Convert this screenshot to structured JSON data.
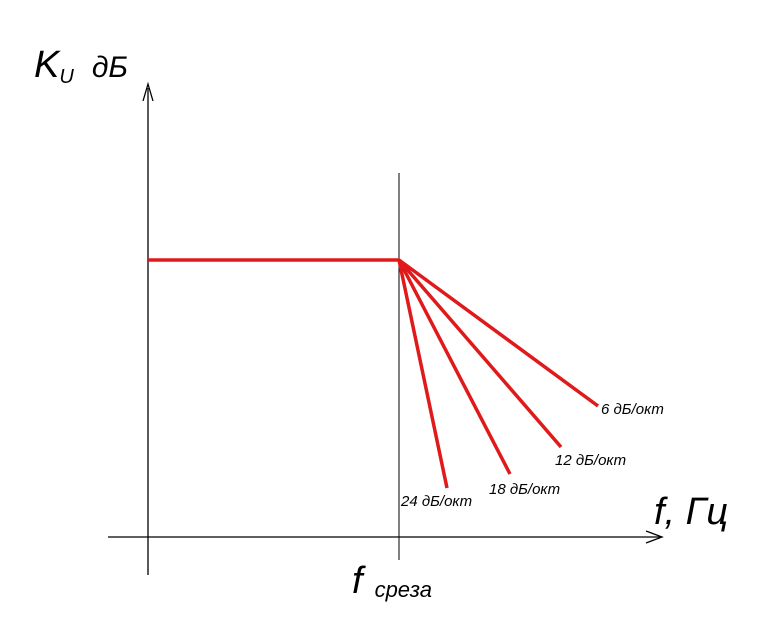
{
  "y_axis": {
    "symbol": "K",
    "subscript": "U",
    "unit": "дБ"
  },
  "x_axis": {
    "label": "f, Гц"
  },
  "cutoff": {
    "symbol": "f",
    "subscript": "среза"
  },
  "slopes": [
    {
      "label": "6 дБ/окт"
    },
    {
      "label": "12 дБ/окт"
    },
    {
      "label": "18 дБ/окт"
    },
    {
      "label": "24 дБ/окт"
    }
  ],
  "colors": {
    "response": "#e01a1a",
    "axes": "#000000"
  }
}
